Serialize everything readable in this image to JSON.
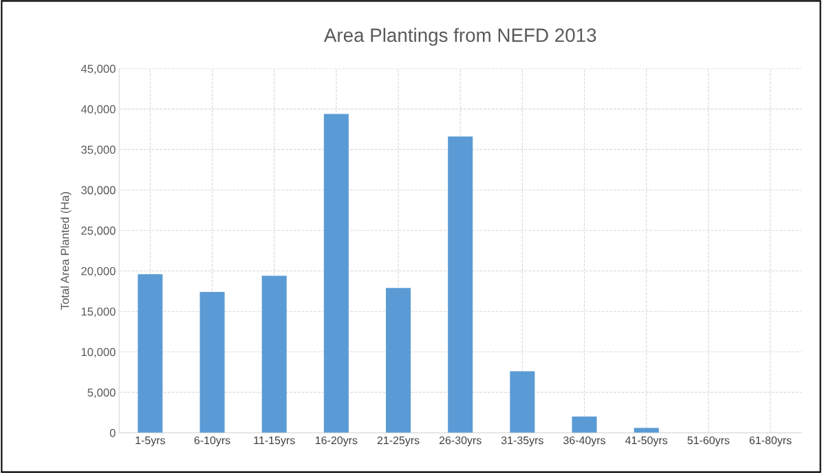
{
  "chart_data": {
    "type": "bar",
    "title": "Area Plantings from NEFD 2013",
    "ylabel": "Total Area Planted (Ha)",
    "categories": [
      "1-5yrs",
      "6-10yrs",
      "11-15yrs",
      "16-20yrs",
      "21-25yrs",
      "26-30yrs",
      "31-35yrs",
      "36-40yrs",
      "41-50yrs",
      "51-60yrs",
      "61-80yrs"
    ],
    "values": [
      19600,
      17400,
      19400,
      39400,
      17900,
      36600,
      7600,
      2000,
      600,
      0,
      0
    ],
    "color": "#5b9bd5",
    "ylim": [
      0,
      45000
    ],
    "yticks": [
      {
        "value": 0,
        "label": "0"
      },
      {
        "value": 5000,
        "label": "5,000"
      },
      {
        "value": 10000,
        "label": "10,000"
      },
      {
        "value": 15000,
        "label": "15,000"
      },
      {
        "value": 20000,
        "label": "20,000"
      },
      {
        "value": 25000,
        "label": "25,000"
      },
      {
        "value": 30000,
        "label": "30,000"
      },
      {
        "value": 35000,
        "label": "35,000"
      },
      {
        "value": 40000,
        "label": "40,000"
      },
      {
        "value": 45000,
        "label": "45,000"
      }
    ],
    "grid": true
  }
}
